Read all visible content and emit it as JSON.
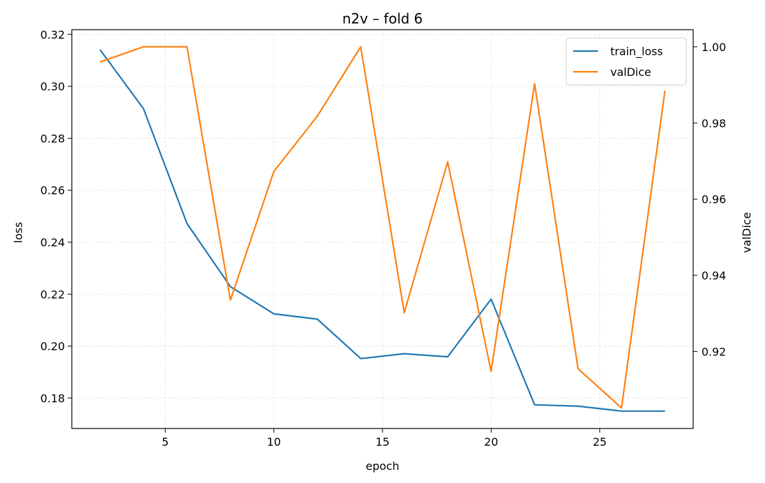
{
  "chart_data": {
    "type": "line",
    "title": "n2v – fold 6",
    "xlabel": "epoch",
    "ylabel_left": "loss",
    "ylabel_right": "valDice",
    "x": [
      2,
      4,
      6,
      8,
      10,
      12,
      14,
      16,
      18,
      20,
      22,
      24,
      26,
      28
    ],
    "xlim": [
      0.7,
      29.3
    ],
    "ylim_left": [
      0.1683,
      0.3218
    ],
    "ylim_right": [
      0.8998,
      1.0045
    ],
    "xticks": [
      5,
      10,
      15,
      20,
      25
    ],
    "yticks_left": [
      0.18,
      0.2,
      0.22,
      0.24,
      0.26,
      0.28,
      0.3,
      0.32
    ],
    "yticks_right": [
      0.92,
      0.94,
      0.96,
      0.98,
      1.0
    ],
    "grid": true,
    "legend_position": "top-right",
    "series": [
      {
        "name": "train_loss",
        "axis": "left",
        "color": "#1f77b4",
        "values": [
          0.3141,
          0.2914,
          0.2472,
          0.2229,
          0.2124,
          0.2104,
          0.1952,
          0.1971,
          0.1959,
          0.2181,
          0.1774,
          0.1769,
          0.175,
          0.175
        ]
      },
      {
        "name": "valDice",
        "axis": "right",
        "color": "#ff7f0e",
        "values": [
          0.996,
          1.0,
          1.0,
          0.9335,
          0.9673,
          0.9818,
          1.0,
          0.9302,
          0.9698,
          0.9148,
          0.9903,
          0.9155,
          0.9052,
          0.9885
        ]
      }
    ]
  }
}
